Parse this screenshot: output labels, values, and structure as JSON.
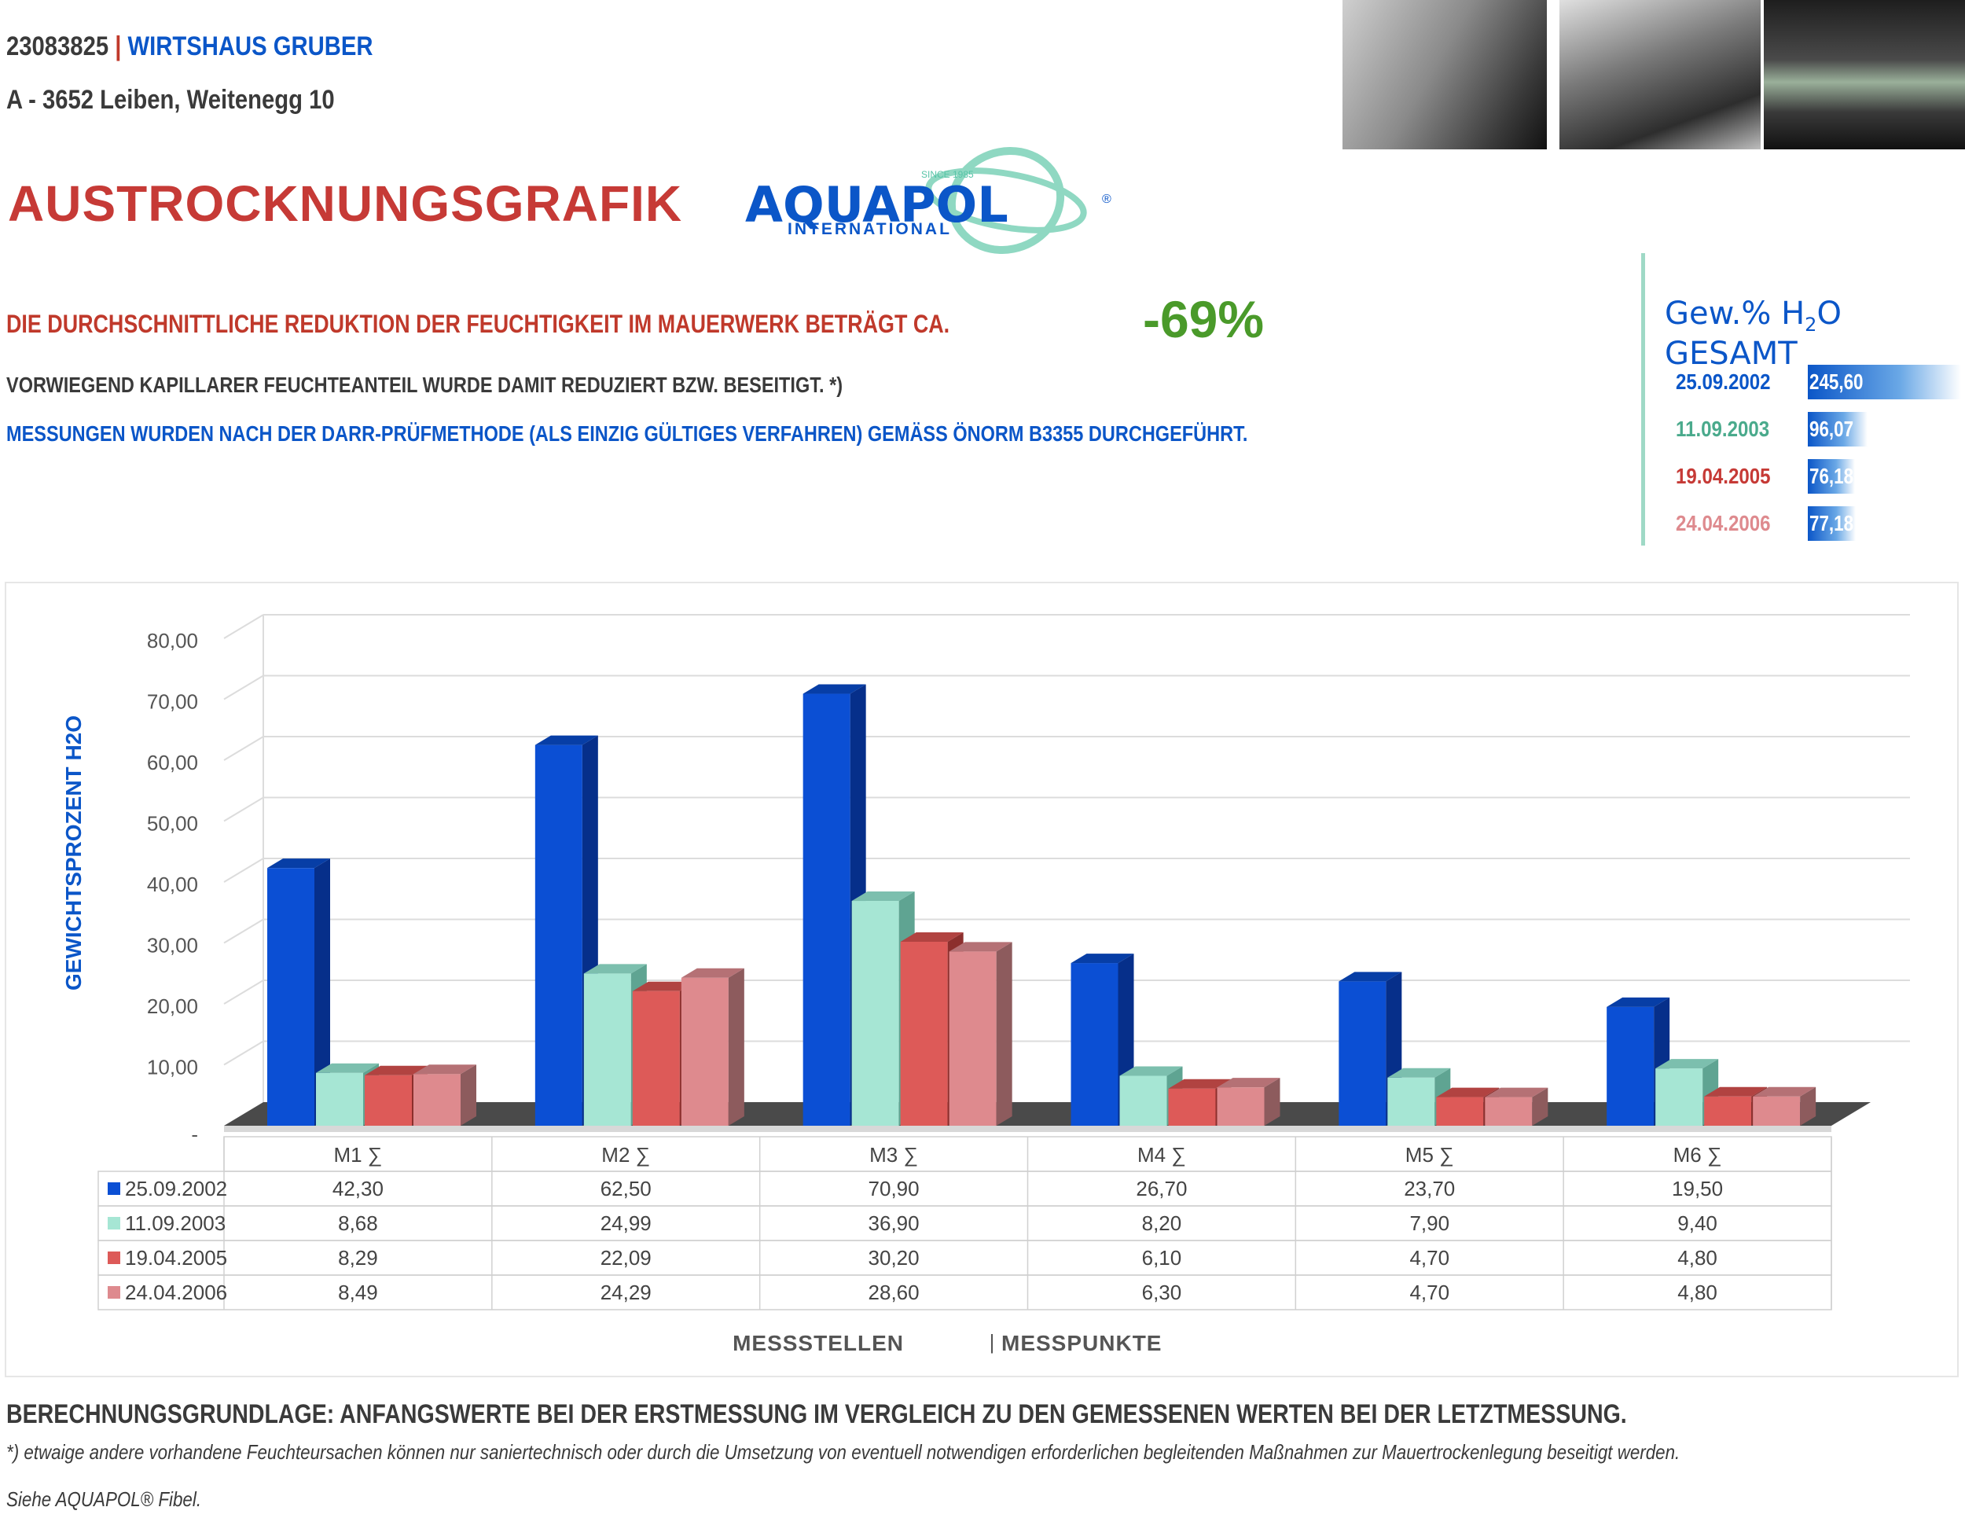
{
  "header": {
    "code": "23083825",
    "separator": "|",
    "name": "WIRTSHAUS GRUBER",
    "address": "A - 3652 Leiben, Weitenegg 10",
    "title": "AUSTROCKNUNGSGRAFIK"
  },
  "logo": {
    "since": "SINCE 1985",
    "brand": "AQUAPOL",
    "sub": "INTERNATIONAL",
    "reg": "®"
  },
  "summary": {
    "reduction_text": "DIE DURCHSCHNITTLICHE REDUKTION DER FEUCHTIGKEIT IM MAUERWERK BETRÄGT CA.",
    "reduction_value": "-69%",
    "line2": "VORWIEGEND KAPILLARER FEUCHTEANTEIL WURDE DAMIT REDUZIERT BZW. BESEITIGT. *)",
    "line3": "MESSUNGEN WURDEN NACH DER DARR-PRÜFMETHODE (ALS EINZIG GÜLTIGES VERFAHREN) GEMÄSS ÖNORM B3355 DURCHGEFÜHRT."
  },
  "gesamt": {
    "title_pre": "Gew.% H",
    "title_sub": "2",
    "title_post": "O GESAMT",
    "rows": [
      {
        "date": "25.09.2002",
        "value": "245,60",
        "num": 245.6,
        "color": "#0b56c8"
      },
      {
        "date": "11.09.2003",
        "value": "96,07",
        "num": 96.07,
        "color": "#4aaa8c"
      },
      {
        "date": "19.04.2005",
        "value": "76,18",
        "num": 76.18,
        "color": "#c63a36"
      },
      {
        "date": "24.04.2006",
        "value": "77,18",
        "num": 77.18,
        "color": "#de8a8e"
      }
    ]
  },
  "chart_data": {
    "type": "bar",
    "ylabel": "GEWICHTSPROZENT H2O",
    "xlabel_left": "MESSSTELLEN",
    "xlabel_sep": "|",
    "xlabel_right": "MESSPUNKTE",
    "ylim": [
      0,
      80
    ],
    "ytick_labels": [
      "-",
      "10,00",
      "20,00",
      "30,00",
      "40,00",
      "50,00",
      "60,00",
      "70,00",
      "80,00"
    ],
    "categories": [
      "M1 ∑",
      "M2 ∑",
      "M3 ∑",
      "M4 ∑",
      "M5 ∑",
      "M6 ∑"
    ],
    "series": [
      {
        "name": "25.09.2002",
        "color": "#0b4fd4",
        "side": "#062f8a",
        "top": "#073ea6",
        "values": [
          42.3,
          62.5,
          70.9,
          26.7,
          23.7,
          19.5
        ],
        "labels": [
          "42,30",
          "62,50",
          "70,90",
          "26,70",
          "23,70",
          "19,50"
        ]
      },
      {
        "name": "11.09.2003",
        "color": "#a6e6d4",
        "side": "#5fa492",
        "top": "#7cbfae",
        "values": [
          8.68,
          24.99,
          36.9,
          8.2,
          7.9,
          9.4
        ],
        "labels": [
          "8,68",
          "24,99",
          "36,90",
          "8,20",
          "7,90",
          "9,40"
        ]
      },
      {
        "name": "19.04.2005",
        "color": "#dd5a58",
        "side": "#8c2f2d",
        "top": "#b14341",
        "values": [
          8.29,
          22.09,
          30.2,
          6.1,
          4.7,
          4.8
        ],
        "labels": [
          "8,29",
          "22,09",
          "30,20",
          "6,10",
          "4,70",
          "4,80"
        ]
      },
      {
        "name": "24.04.2006",
        "color": "#de8a8e",
        "side": "#8d5b5d",
        "top": "#b57175",
        "values": [
          8.49,
          24.29,
          28.6,
          6.3,
          4.7,
          4.8
        ],
        "labels": [
          "8,49",
          "24,29",
          "28,60",
          "6,30",
          "4,70",
          "4,80"
        ]
      }
    ],
    "grid": true,
    "legend": "table-below"
  },
  "footer": {
    "basis": "BERECHNUNGSGRUNDLAGE: ANFANGSWERTE BEI DER ERSTMESSUNG IM VERGLEICH ZU DEN GEMESSENEN WERTEN BEI DER LETZTMESSUNG.",
    "note": "*) etwaige andere vorhandene Feuchteursachen können nur saniertechnisch oder durch die Umsetzung von eventuell notwendigen erforderlichen begleitenden Maßnahmen zur Mauertrockenlegung beseitigt werden.",
    "ref": "Siehe AQUAPOL® Fibel."
  }
}
